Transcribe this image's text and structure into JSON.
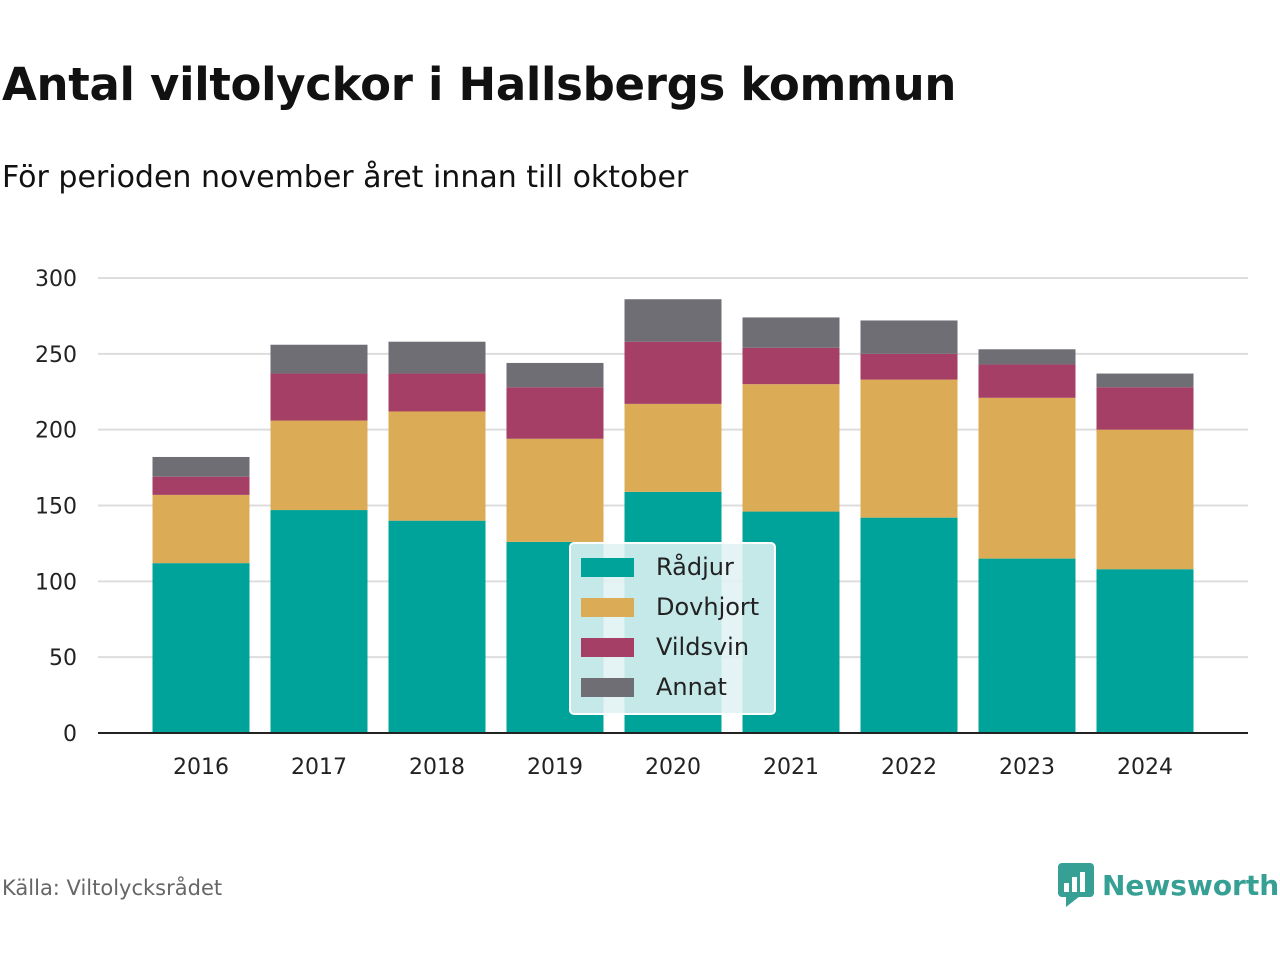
{
  "header": {
    "title": "Antal viltolyckor i Hallsbergs kommun",
    "subtitle": "För perioden november året innan till oktober"
  },
  "footer": {
    "source": "Källa: Viltolycksrådet",
    "brand": "Newsworthy",
    "brand_icon": "bar-chart-speech-bubble-icon",
    "brand_color": "#36a095"
  },
  "chart_data": {
    "type": "bar",
    "stacked": true,
    "categories": [
      "2016",
      "2017",
      "2018",
      "2019",
      "2020",
      "2021",
      "2022",
      "2023",
      "2024"
    ],
    "series": [
      {
        "name": "Rådjur",
        "color": "#00a39a",
        "values": [
          112,
          147,
          140,
          126,
          159,
          146,
          142,
          115,
          108
        ]
      },
      {
        "name": "Dovhjort",
        "color": "#dcab56",
        "values": [
          45,
          59,
          72,
          68,
          58,
          84,
          91,
          106,
          92
        ]
      },
      {
        "name": "Vildsvin",
        "color": "#a53f66",
        "values": [
          12,
          31,
          25,
          34,
          41,
          24,
          17,
          22,
          28
        ]
      },
      {
        "name": "Annat",
        "color": "#706e75",
        "values": [
          13,
          19,
          21,
          16,
          28,
          20,
          22,
          10,
          9
        ]
      }
    ],
    "yticks": [
      0,
      50,
      100,
      150,
      200,
      250,
      300
    ],
    "ylim": [
      0,
      300
    ],
    "grid": true,
    "legend": {
      "placement": "center-bottom",
      "entries": [
        "Rådjur",
        "Dovhjort",
        "Vildsvin",
        "Annat"
      ]
    }
  }
}
